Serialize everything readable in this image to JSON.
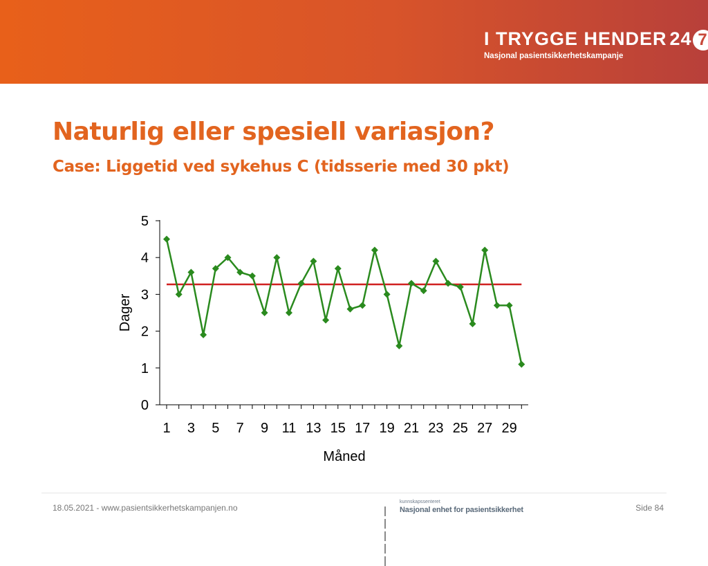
{
  "header": {
    "logo_main": "I TRYGGE HENDER",
    "logo_24": "24",
    "logo_7": "7",
    "logo_sub": "Nasjonal pasientsikkerhetskampanje"
  },
  "slide": {
    "title": "Naturlig eller spesiell variasjon?",
    "subtitle": "Case: Liggetid ved sykehus C (tidsserie med 30 pkt)"
  },
  "chart_data": {
    "type": "line",
    "title": "",
    "xlabel": "Måned",
    "ylabel": "Dager",
    "x": [
      1,
      2,
      3,
      4,
      5,
      6,
      7,
      8,
      9,
      10,
      11,
      12,
      13,
      14,
      15,
      16,
      17,
      18,
      19,
      20,
      21,
      22,
      23,
      24,
      25,
      26,
      27,
      28,
      29,
      30
    ],
    "x_tick_labels": [
      "1",
      "3",
      "5",
      "7",
      "9",
      "11",
      "13",
      "15",
      "17",
      "19",
      "21",
      "23",
      "25",
      "27",
      "29"
    ],
    "y_tick_labels": [
      "0",
      "1",
      "2",
      "3",
      "4",
      "5"
    ],
    "ylim": [
      0,
      5
    ],
    "series": [
      {
        "values": [
          4.5,
          3.0,
          3.6,
          1.9,
          3.7,
          4.0,
          3.6,
          3.5,
          2.5,
          4.0,
          2.5,
          3.3,
          3.9,
          2.3,
          3.7,
          2.6,
          2.7,
          4.2,
          3.0,
          1.6,
          3.3,
          3.1,
          3.9,
          3.3,
          3.2,
          2.2,
          4.2,
          2.7,
          2.7,
          1.1
        ],
        "color": "#2a8a1e",
        "marker": "diamond"
      }
    ],
    "reference_line": {
      "value": 3.27,
      "color": "#d02020",
      "from_x": 1,
      "to_x": 30
    },
    "grid": false
  },
  "footer": {
    "date_url": "18.05.2021 - www.pasientsikkerhetskampanjen.no",
    "page": "Side 84",
    "logo_top": "kunnskapssenteret",
    "logo_main": "Nasjonal enhet for pasientsikkerhet"
  }
}
